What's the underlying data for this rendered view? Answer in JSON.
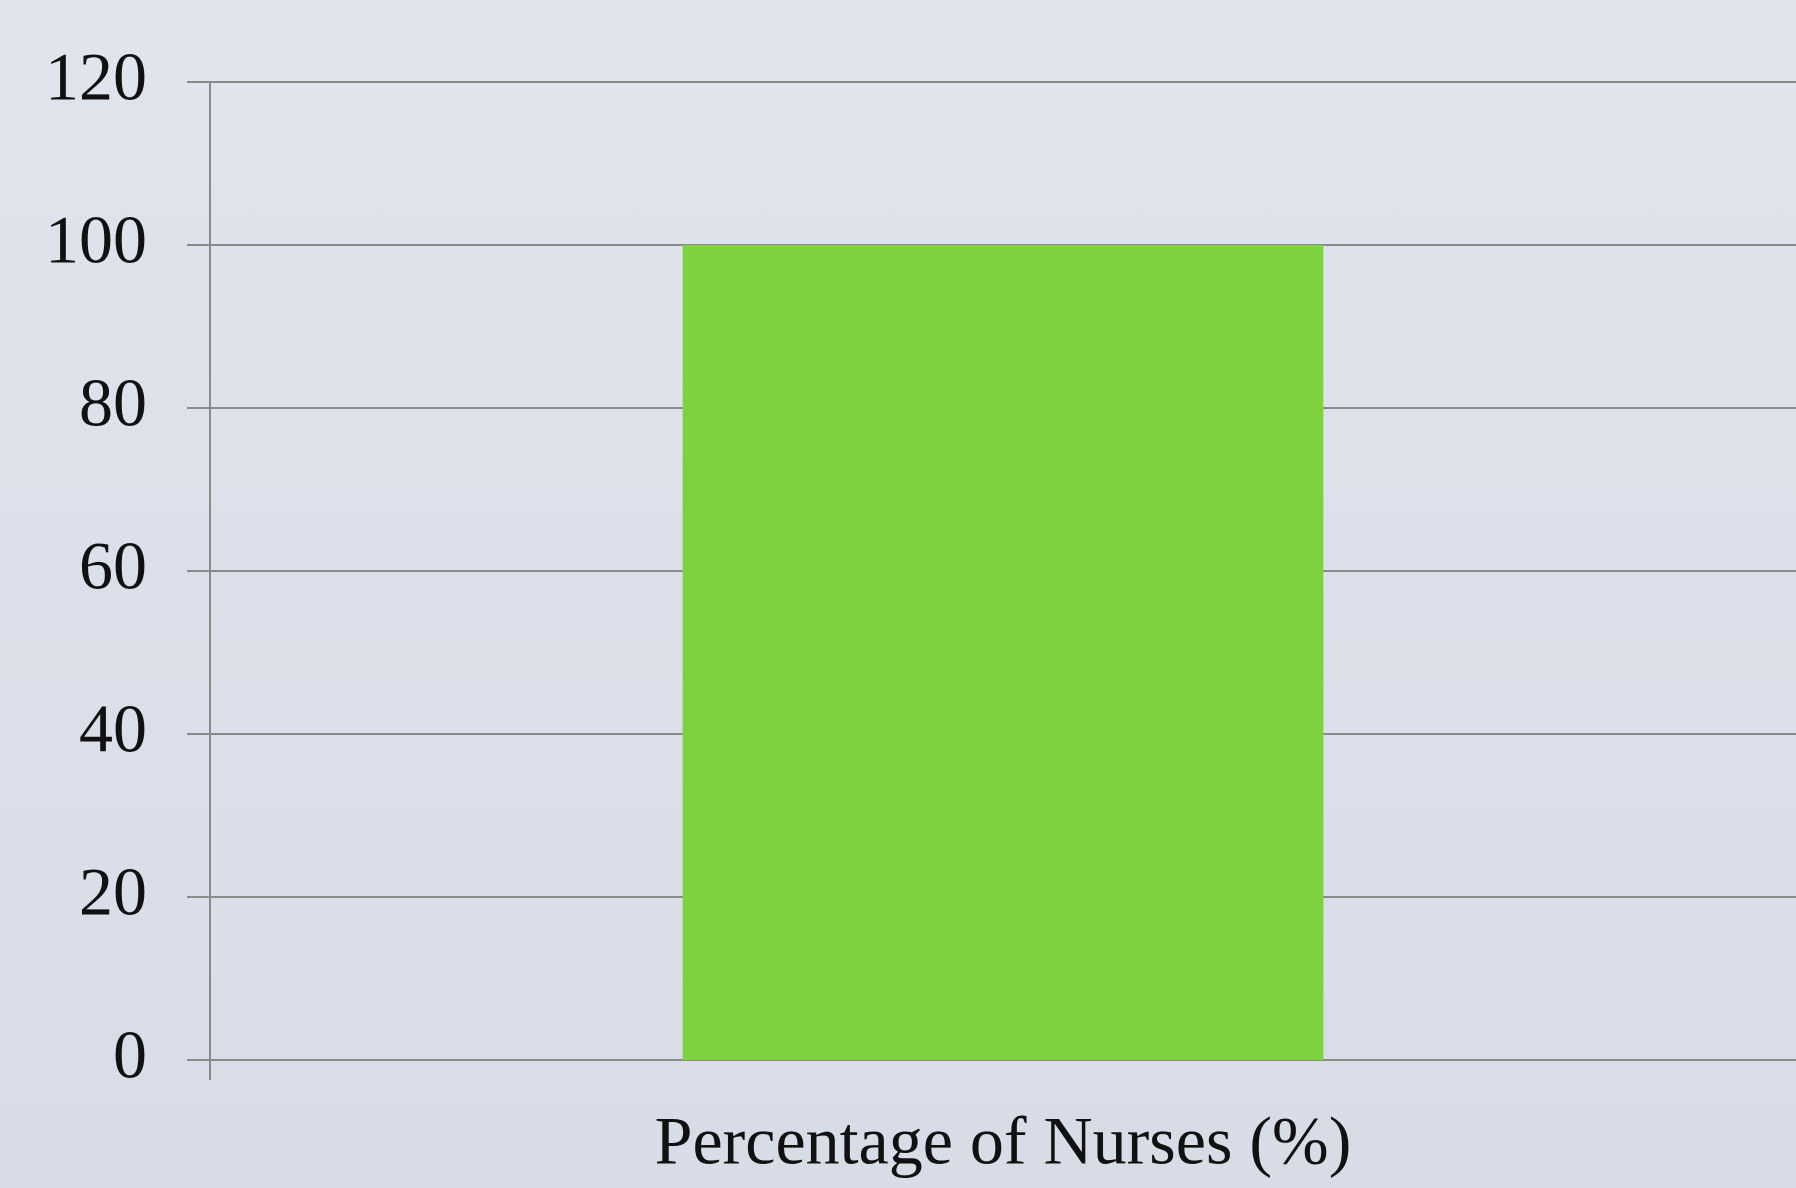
{
  "chart_data": {
    "type": "bar",
    "categories": [
      "Percentage of Nurses (%)"
    ],
    "values": [
      100
    ],
    "color": "#7ed23d",
    "ylim": [
      0,
      120
    ],
    "yticks": [
      0,
      20,
      40,
      60,
      80,
      100,
      120
    ],
    "grid": true
  }
}
